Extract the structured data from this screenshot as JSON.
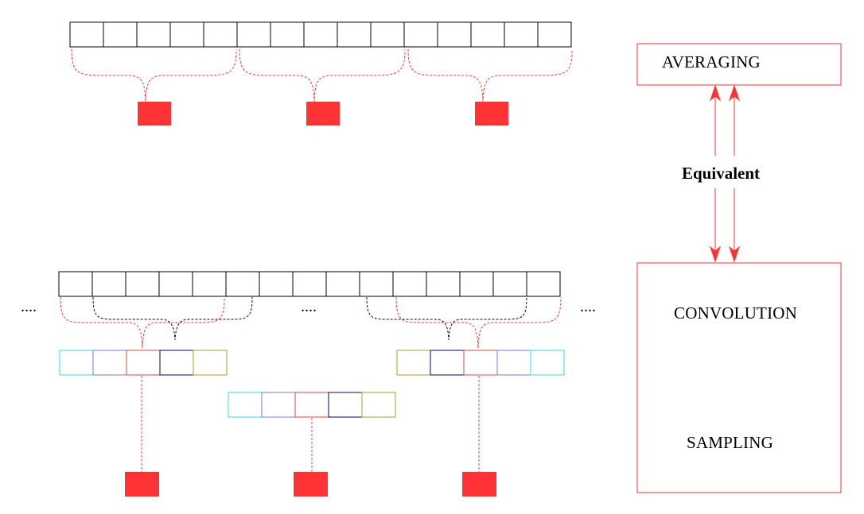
{
  "labels": {
    "averaging": "AVERAGING",
    "equivalent": "Equivalent",
    "convolution": "CONVOLUTION",
    "sampling": "SAMPLING",
    "ellipsis": "...."
  },
  "colors": {
    "red": "#ff3333",
    "cyan": "#33dddd",
    "blue_violet": "#7777dd",
    "red_mid": "#dd4444",
    "navy": "#000077",
    "gold": "#bb9922",
    "outline": "#000000"
  },
  "icons": {
    "output_marker": "filled-red-square"
  }
}
